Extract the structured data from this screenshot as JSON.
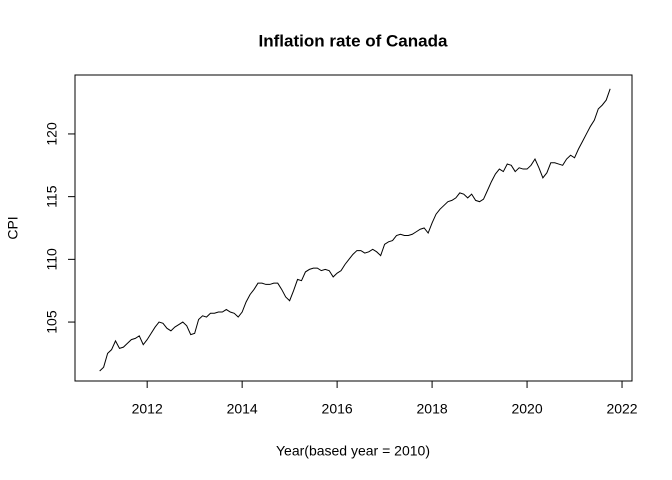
{
  "chart_data": {
    "type": "line",
    "title": "Inflation rate of Canada",
    "x_label": "Year(based year = 2010)",
    "y_label": "CPI",
    "x": [
      2011,
      2011.083,
      2011.167,
      2011.25,
      2011.333,
      2011.417,
      2011.5,
      2011.583,
      2011.667,
      2011.75,
      2011.833,
      2011.917,
      2012,
      2012.083,
      2012.167,
      2012.25,
      2012.333,
      2012.417,
      2012.5,
      2012.583,
      2012.667,
      2012.75,
      2012.833,
      2012.917,
      2013,
      2013.083,
      2013.167,
      2013.25,
      2013.333,
      2013.417,
      2013.5,
      2013.583,
      2013.667,
      2013.75,
      2013.833,
      2013.917,
      2014,
      2014.083,
      2014.167,
      2014.25,
      2014.333,
      2014.417,
      2014.5,
      2014.583,
      2014.667,
      2014.75,
      2014.833,
      2014.917,
      2015,
      2015.083,
      2015.167,
      2015.25,
      2015.333,
      2015.417,
      2015.5,
      2015.583,
      2015.667,
      2015.75,
      2015.833,
      2015.917,
      2016,
      2016.083,
      2016.167,
      2016.25,
      2016.333,
      2016.417,
      2016.5,
      2016.583,
      2016.667,
      2016.75,
      2016.833,
      2016.917,
      2017,
      2017.083,
      2017.167,
      2017.25,
      2017.333,
      2017.417,
      2017.5,
      2017.583,
      2017.667,
      2017.75,
      2017.833,
      2017.917,
      2018,
      2018.083,
      2018.167,
      2018.25,
      2018.333,
      2018.417,
      2018.5,
      2018.583,
      2018.667,
      2018.75,
      2018.833,
      2018.917,
      2019,
      2019.083,
      2019.167,
      2019.25,
      2019.333,
      2019.417,
      2019.5,
      2019.583,
      2019.667,
      2019.75,
      2019.833,
      2019.917,
      2020,
      2020.083,
      2020.167,
      2020.25,
      2020.333,
      2020.417,
      2020.5,
      2020.583,
      2020.667,
      2020.75,
      2020.833,
      2020.917,
      2021,
      2021.083,
      2021.167,
      2021.25,
      2021.333,
      2021.417,
      2021.5,
      2021.583,
      2021.667,
      2021.75
    ],
    "series": [
      {
        "color": "#000000",
        "values": [
          101.1,
          101.4,
          102.5,
          102.8,
          103.5,
          102.9,
          103.0,
          103.3,
          103.6,
          103.7,
          103.9,
          103.2,
          103.6,
          104.1,
          104.6,
          105.0,
          104.9,
          104.5,
          104.3,
          104.6,
          104.8,
          105.0,
          104.7,
          104.0,
          104.1,
          105.2,
          105.5,
          105.4,
          105.7,
          105.7,
          105.8,
          105.8,
          106.0,
          105.8,
          105.7,
          105.4,
          105.8,
          106.6,
          107.2,
          107.6,
          108.1,
          108.1,
          108.0,
          108.0,
          108.1,
          108.1,
          107.6,
          107.0,
          106.7,
          107.5,
          108.4,
          108.3,
          109.0,
          109.2,
          109.3,
          109.3,
          109.1,
          109.2,
          109.1,
          108.6,
          108.9,
          109.1,
          109.6,
          110.0,
          110.4,
          110.7,
          110.7,
          110.5,
          110.6,
          110.8,
          110.6,
          110.3,
          111.2,
          111.4,
          111.5,
          111.9,
          112.0,
          111.9,
          111.9,
          112.0,
          112.2,
          112.4,
          112.5,
          112.1,
          112.9,
          113.6,
          114.0,
          114.3,
          114.6,
          114.7,
          114.9,
          115.3,
          115.2,
          114.9,
          115.2,
          114.7,
          114.6,
          114.8,
          115.5,
          116.2,
          116.8,
          117.2,
          117.0,
          117.6,
          117.5,
          117.0,
          117.3,
          117.2,
          117.2,
          117.5,
          118.0,
          117.3,
          116.5,
          116.9,
          117.7,
          117.7,
          117.6,
          117.5,
          118.0,
          118.3,
          118.1,
          118.8,
          119.4,
          120.0,
          120.6,
          121.1,
          122.0,
          122.3,
          122.7,
          123.6
        ]
      }
    ],
    "xlim": [
      2010.48,
      2022.21
    ],
    "xticks": [
      2012,
      2014,
      2016,
      2018,
      2020,
      2022
    ],
    "ylim": [
      100.3,
      124.7
    ],
    "yticks": [
      105,
      110,
      115,
      120
    ]
  }
}
